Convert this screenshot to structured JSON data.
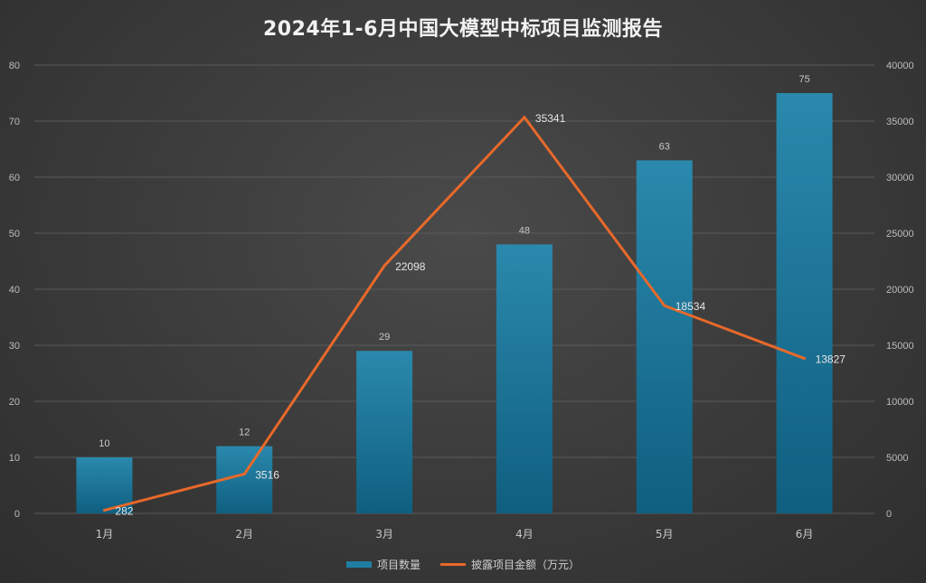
{
  "chart_data": {
    "type": "bar",
    "title": "2024年1-6月中国大模型中标项目监测报告",
    "categories": [
      "1月",
      "2月",
      "3月",
      "4月",
      "5月",
      "6月"
    ],
    "series": [
      {
        "name": "项目数量",
        "type": "bar",
        "axis": "left",
        "values": [
          10,
          12,
          29,
          48,
          63,
          75
        ],
        "value_labels": [
          "10",
          "12",
          "29",
          "48",
          "63",
          "75"
        ],
        "color": "#1f7fa3"
      },
      {
        "name": "披露项目金额（万元）",
        "type": "line",
        "axis": "right",
        "values": [
          282,
          3516,
          22098,
          35341,
          18534,
          13827
        ],
        "value_labels": [
          "282",
          "3516",
          "22098",
          "35341",
          "18534",
          "13827"
        ],
        "color": "#e8692a"
      }
    ],
    "y_left": {
      "range": [
        0,
        80
      ],
      "ticks": [
        "0",
        "10",
        "20",
        "30",
        "40",
        "50",
        "60",
        "70",
        "80"
      ]
    },
    "y_right": {
      "range": [
        0,
        40000
      ],
      "ticks": [
        "0",
        "5000",
        "10000",
        "15000",
        "20000",
        "25000",
        "30000",
        "35000",
        "40000"
      ]
    },
    "grid": true,
    "legend_position": "bottom"
  }
}
